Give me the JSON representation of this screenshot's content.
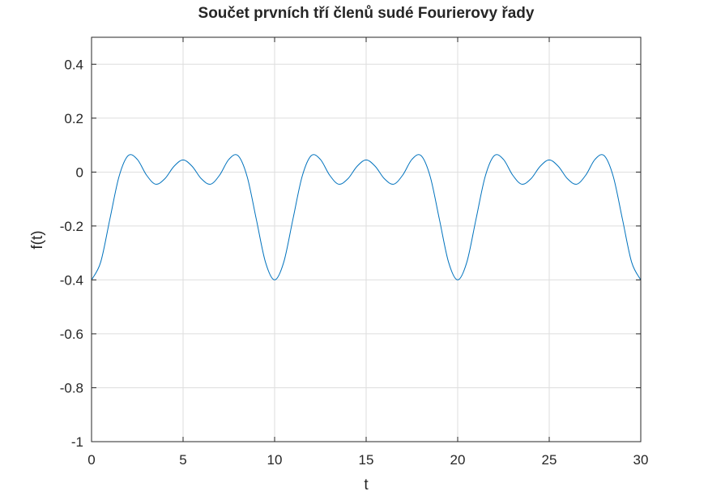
{
  "chart_data": {
    "type": "line",
    "title": "Součet prvních tří členů sudé Fourierovy řady",
    "xlabel": "t",
    "ylabel": "f(t)",
    "xlim": [
      0,
      30
    ],
    "ylim": [
      -1,
      0.5
    ],
    "xticks": [
      0,
      5,
      10,
      15,
      20,
      25,
      30
    ],
    "xtick_labels": [
      "0",
      "5",
      "10",
      "15",
      "20",
      "25",
      "30"
    ],
    "yticks": [
      -1,
      -0.8,
      -0.6,
      -0.4,
      -0.2,
      0,
      0.2,
      0.4
    ],
    "ytick_labels": [
      "-1",
      "-0.8",
      "-0.6",
      "-0.4",
      "-0.2",
      "0",
      "0.2",
      "0.4"
    ],
    "grid": true,
    "line_color": "#0072bd",
    "series": [
      {
        "x": [
          0,
          0.5,
          1,
          1.5,
          2,
          2.5,
          3,
          3.5,
          4,
          4.5,
          5,
          5.5,
          6,
          6.5,
          7,
          7.5,
          8,
          8.5,
          9,
          9.5,
          10,
          10.5,
          11,
          11.5,
          12,
          12.5,
          13,
          13.5,
          14,
          14.5,
          15,
          15.5,
          16,
          16.5,
          17,
          17.5,
          18,
          18.5,
          19,
          19.5,
          20,
          20.5,
          21,
          21.5,
          22,
          22.5,
          23,
          23.5,
          24,
          24.5,
          25,
          25.5,
          26,
          26.5,
          27,
          27.5,
          28,
          28.5,
          29,
          29.5,
          30
        ],
        "y": [
          -0.4,
          -0.334,
          -0.175,
          -0.017,
          0.061,
          0.047,
          -0.011,
          -0.045,
          -0.025,
          0.021,
          0.045,
          0.021,
          -0.025,
          -0.045,
          -0.011,
          0.047,
          0.061,
          -0.017,
          -0.175,
          -0.334,
          -0.4,
          -0.334,
          -0.175,
          -0.017,
          0.061,
          0.047,
          -0.011,
          -0.045,
          -0.025,
          0.021,
          0.045,
          0.021,
          -0.025,
          -0.045,
          -0.011,
          0.047,
          0.061,
          -0.017,
          -0.175,
          -0.334,
          -0.4,
          -0.334,
          -0.175,
          -0.017,
          0.061,
          0.047,
          -0.011,
          -0.045,
          -0.025,
          0.021,
          0.045,
          0.021,
          -0.025,
          -0.045,
          -0.011,
          0.047,
          0.061,
          -0.017,
          -0.175,
          -0.334,
          -0.4
        ]
      }
    ]
  }
}
